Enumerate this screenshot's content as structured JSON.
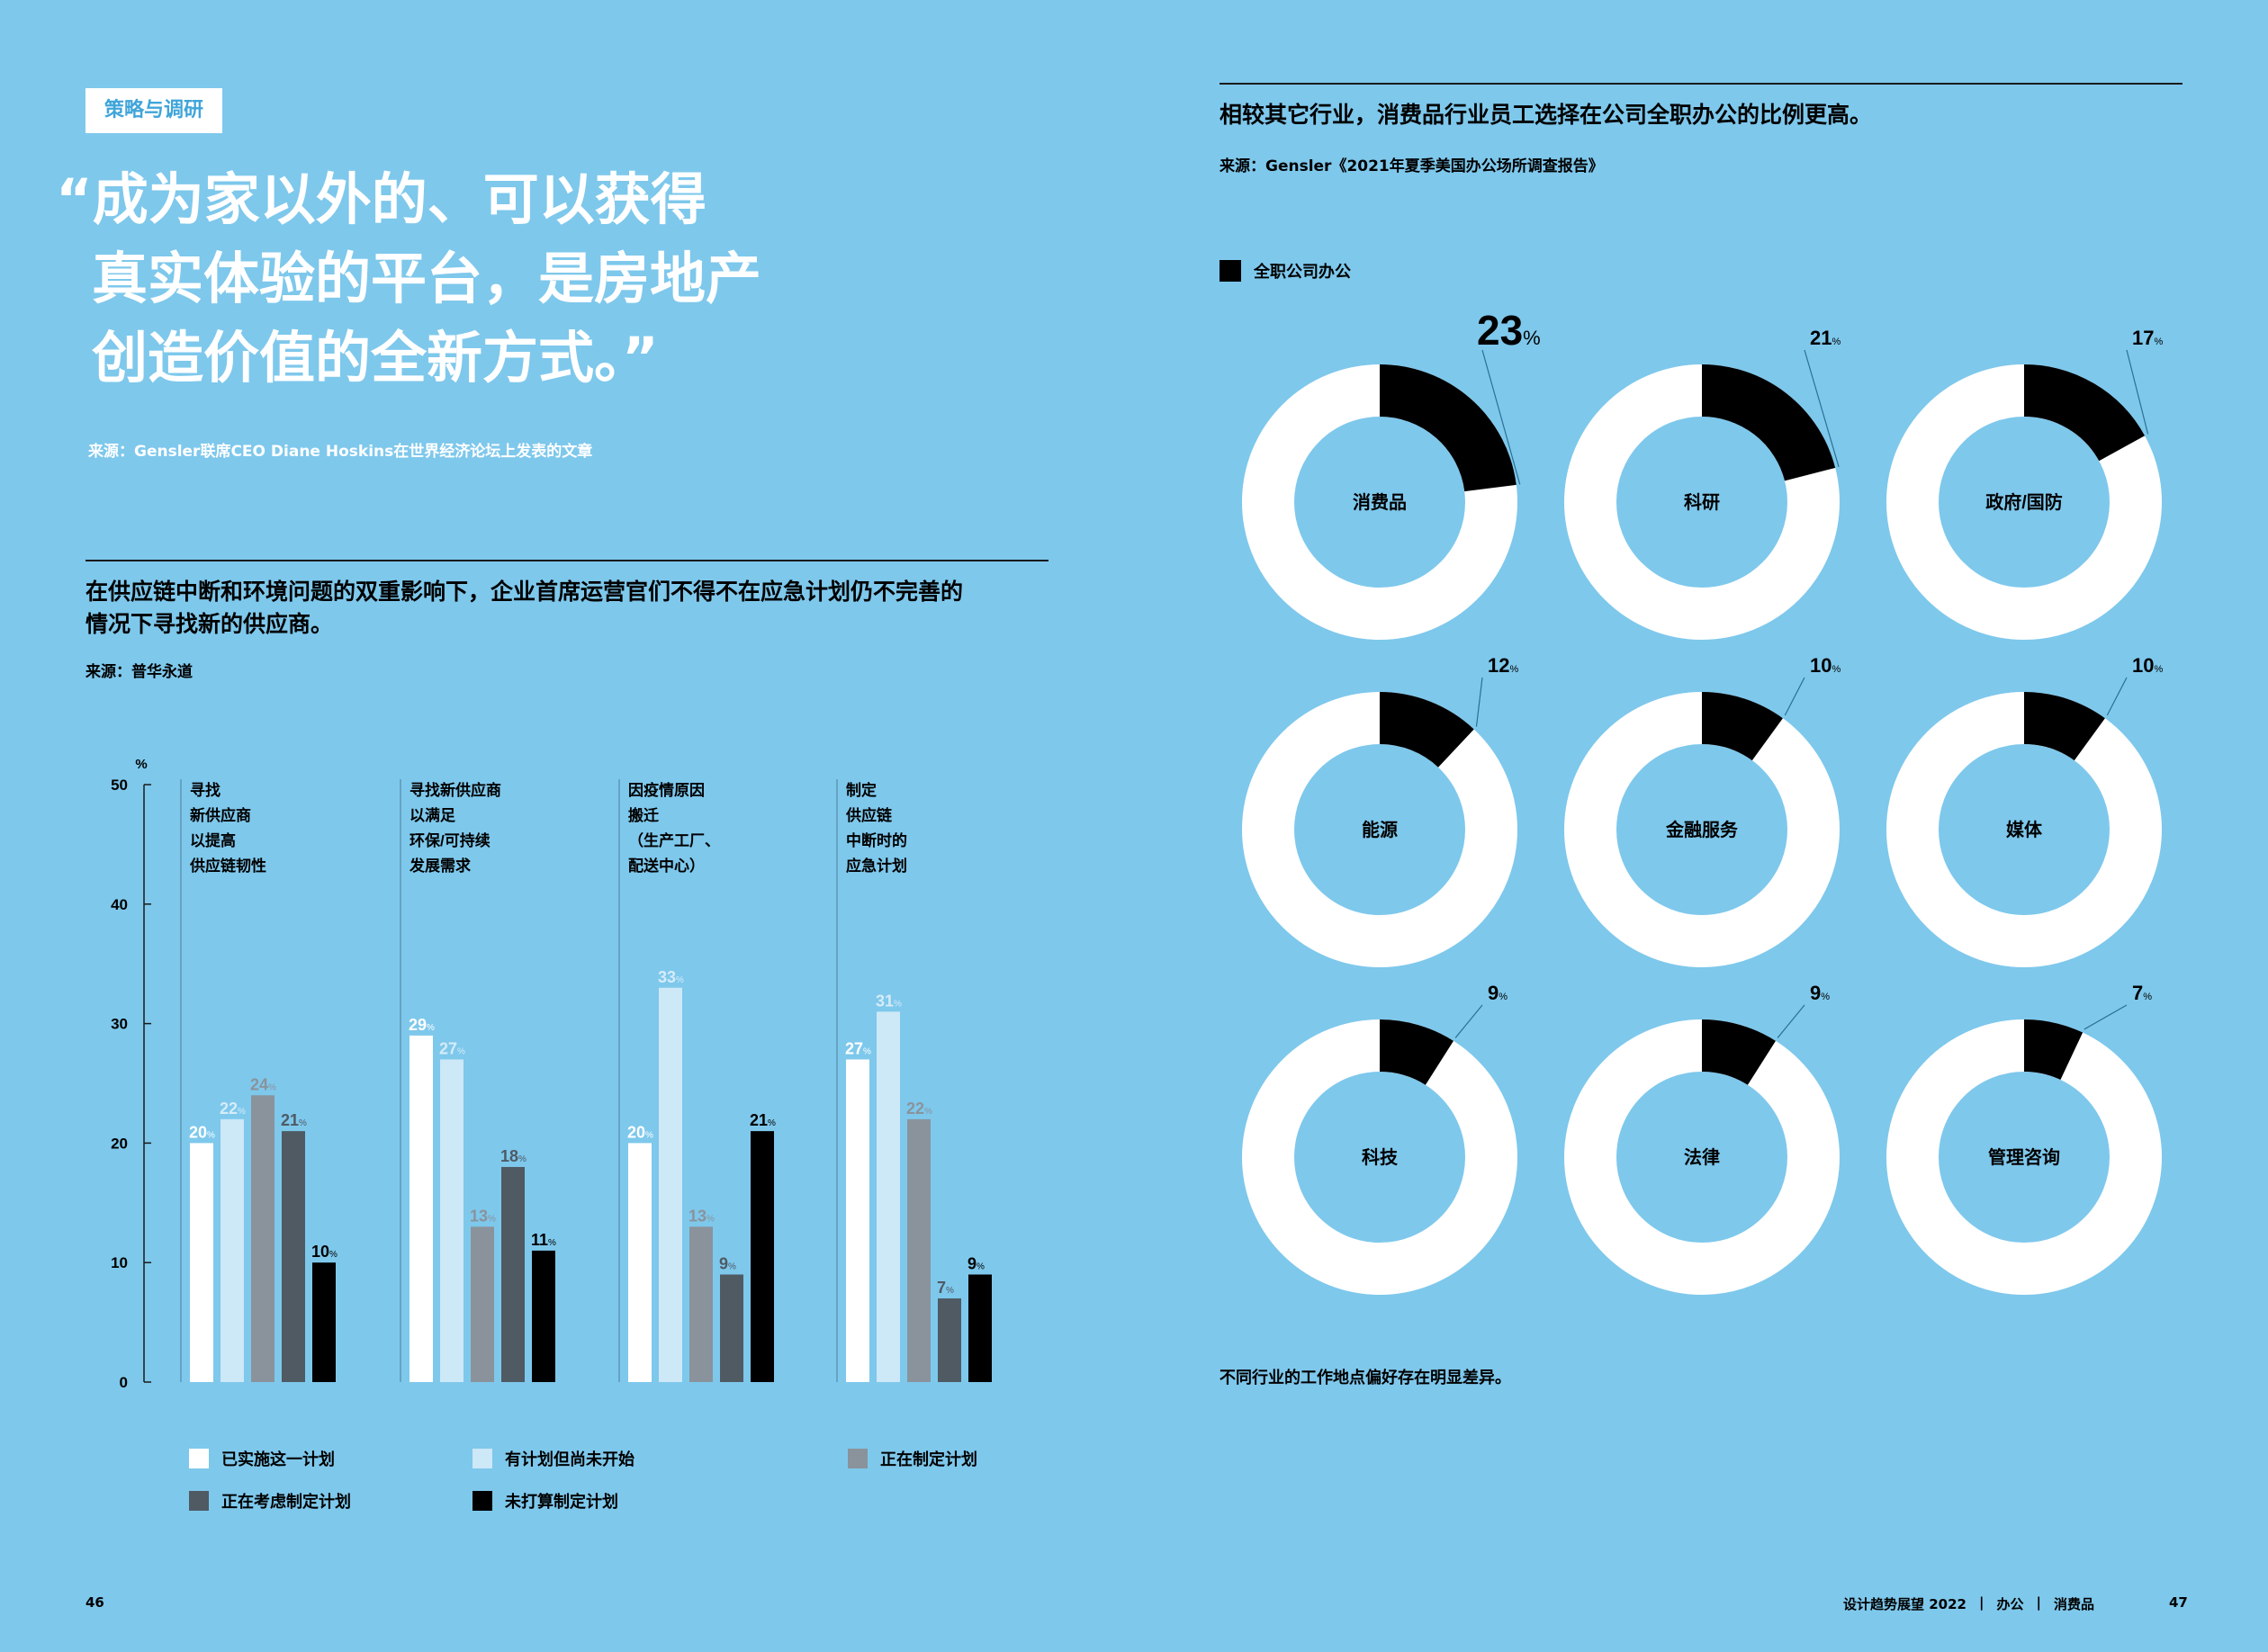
{
  "left": {
    "tag": "策略与调研",
    "quote_lines": [
      "“成为家以外的、可以获得",
      "真实体验的平台，是房地产",
      "创造价值的全新方式。”"
    ],
    "quote_source": "来源：Gensler联席CEO Diane Hoskins在世界经济论坛上发表的文章",
    "chart_title": [
      "在供应链中断和环境问题的双重影响下，企业首席运营官们不得不在应急计划仍不完善的",
      "情况下寻找新的供应商。"
    ],
    "chart_source": "来源：普华永道",
    "page_number": "46"
  },
  "right": {
    "chart_title": "相较其它行业，消费品行业员工选择在公司全职办公的比例更高。",
    "chart_source": "来源：Gensler《2021年夏季美国办公场所调查报告》",
    "legend_label": "全职公司办公",
    "footnote": "不同行业的工作地点偏好存在明显差异。",
    "footer_title": "设计趋势展望 2022",
    "footer_sep": "|",
    "footer_section": "办公",
    "footer_topic": "消费品",
    "page_number": "47"
  },
  "colors": {
    "background": "#7ec8ec",
    "implemented": "#ffffff",
    "planned": "#cde8f6",
    "developing": "#8a939b",
    "considering": "#4f5a63",
    "no_plan": "#000000",
    "donut_track": "#ffffff",
    "donut_value": "#000000"
  },
  "chart_data": [
    {
      "type": "bar",
      "ylabel": "%",
      "ylim": [
        0,
        50
      ],
      "yticks": [
        0,
        10,
        20,
        30,
        40,
        50
      ],
      "value_suffix": "%",
      "categories": [
        [
          "寻找",
          "新供应商",
          "以提高",
          "供应链韧性"
        ],
        [
          "寻找新供应商",
          "以满足",
          "环保/可持续",
          "发展需求"
        ],
        [
          "因疫情原因",
          "搬迁",
          "（生产工厂、",
          "配送中心）"
        ],
        [
          "制定",
          "供应链",
          "中断时的",
          "应急计划"
        ]
      ],
      "series": [
        {
          "name": "已实施这一计划",
          "values": [
            20,
            29,
            20,
            27
          ]
        },
        {
          "name": "有计划但尚未开始",
          "values": [
            22,
            27,
            33,
            31
          ]
        },
        {
          "name": "正在制定计划",
          "values": [
            24,
            13,
            13,
            22
          ]
        },
        {
          "name": "正在考虑制定计划",
          "values": [
            21,
            18,
            9,
            7
          ]
        },
        {
          "name": "未打算制定计划",
          "values": [
            10,
            11,
            21,
            9
          ]
        }
      ],
      "legend": "bottom"
    },
    {
      "type": "pie",
      "variant": "donut",
      "series_name": "全职公司办公",
      "value_suffix": "%",
      "categories": [
        "消费品",
        "科研",
        "政府/国防",
        "能源",
        "金融服务",
        "媒体",
        "科技",
        "法律",
        "管理咨询"
      ],
      "values": [
        23,
        21,
        17,
        12,
        10,
        10,
        9,
        9,
        7
      ],
      "legend": "top-left"
    }
  ]
}
